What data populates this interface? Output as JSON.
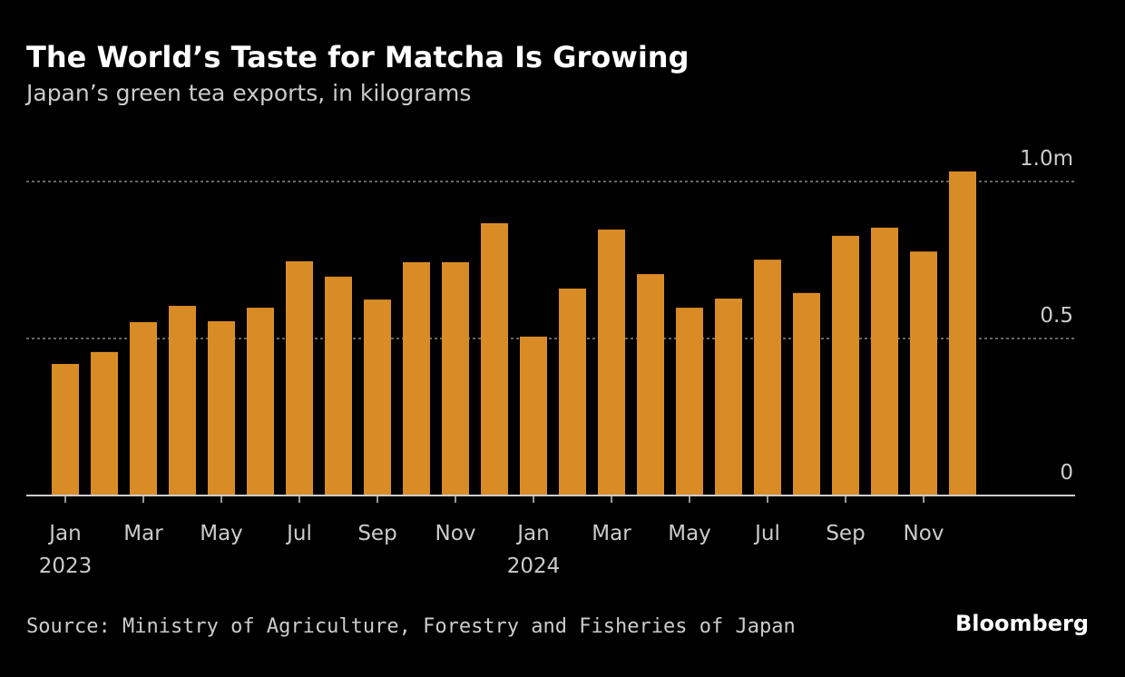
{
  "chart_data": {
    "type": "bar",
    "title": "The World’s Taste for Matcha Is Growing",
    "subtitle": "Japan’s green tea exports, in kilograms",
    "source": "Source: Ministry of Agriculture, Forestry and Fisheries of Japan",
    "brand": "Bloomberg",
    "categories": [
      "Jan",
      null,
      "Mar",
      null,
      "May",
      null,
      "Jul",
      null,
      "Sep",
      null,
      "Nov",
      null,
      "Jan",
      null,
      "Mar",
      null,
      "May",
      null,
      "Jul",
      null,
      "Sep",
      null,
      "Nov",
      null
    ],
    "years": [
      "2023",
      null,
      null,
      null,
      null,
      null,
      null,
      null,
      null,
      null,
      null,
      null,
      "2024",
      null,
      null,
      null,
      null,
      null,
      null,
      null,
      null,
      null,
      null,
      null
    ],
    "values": [
      0.419,
      0.457,
      0.552,
      0.604,
      0.555,
      0.598,
      0.746,
      0.697,
      0.624,
      0.743,
      0.743,
      0.867,
      0.506,
      0.659,
      0.847,
      0.705,
      0.598,
      0.627,
      0.751,
      0.645,
      0.827,
      0.853,
      0.777,
      1.032
    ],
    "color": "#d98c26",
    "ylim": [
      0,
      1.0
    ],
    "yticks": [
      0,
      0.5,
      {
        "value": 1,
        "label": "1.0m"
      }
    ],
    "grid": true
  }
}
